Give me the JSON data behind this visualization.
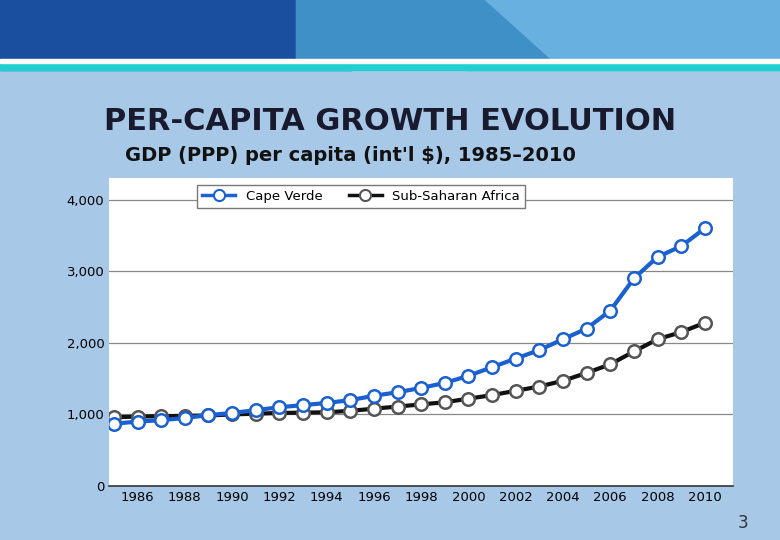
{
  "title": "PER-CAPITA GROWTH EVOLUTION",
  "chart_title": "GDP (PPP) per capita (int'l $), 1985–2010",
  "years": [
    1985,
    1986,
    1987,
    1988,
    1989,
    1990,
    1991,
    1992,
    1993,
    1994,
    1995,
    1996,
    1997,
    1998,
    1999,
    2000,
    2001,
    2002,
    2003,
    2004,
    2005,
    2006,
    2007,
    2008,
    2009,
    2010
  ],
  "cape_verde": [
    870,
    900,
    920,
    950,
    990,
    1020,
    1060,
    1100,
    1130,
    1160,
    1200,
    1260,
    1310,
    1370,
    1440,
    1540,
    1660,
    1780,
    1900,
    2050,
    2200,
    2450,
    2900,
    3200,
    3350,
    3600
  ],
  "sub_saharan": [
    960,
    970,
    975,
    980,
    985,
    1000,
    1010,
    1020,
    1025,
    1030,
    1050,
    1080,
    1110,
    1140,
    1170,
    1220,
    1270,
    1330,
    1390,
    1470,
    1580,
    1700,
    1880,
    2050,
    2150,
    2280
  ],
  "cape_verde_color": "#1a60d0",
  "sub_saharan_color": "#111111",
  "background_color": "#ffffff",
  "slide_bg": "#a8c8e8",
  "header_left": "#1a55b0",
  "header_right": "#5aaae0",
  "header_line": "#00c8c8",
  "ylim": [
    0,
    4300
  ],
  "yticks": [
    0,
    1000,
    2000,
    3000,
    4000
  ],
  "xticks": [
    1986,
    1988,
    1990,
    1992,
    1994,
    1996,
    1998,
    2000,
    2002,
    2004,
    2006,
    2008,
    2010
  ],
  "page_number": "3",
  "title_fontsize": 22,
  "chart_title_fontsize": 14
}
